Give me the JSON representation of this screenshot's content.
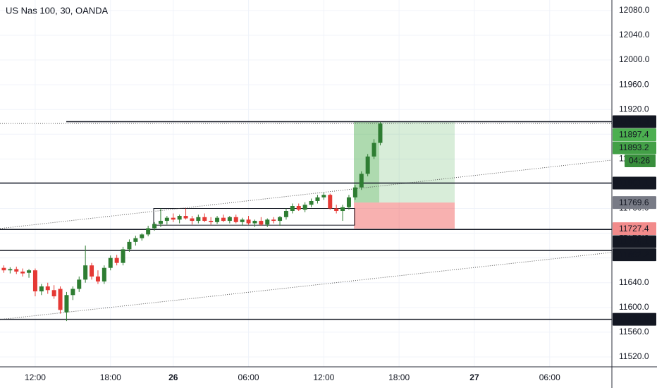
{
  "chart_data": {
    "type": "candlestick",
    "title": "US Nas 100, 30, OANDA",
    "categories": [
      null,
      null,
      null,
      null,
      null,
      "12:00",
      null,
      null,
      null,
      null,
      null,
      null,
      null,
      null,
      null,
      null,
      null,
      "18:00",
      null,
      null,
      null,
      null,
      null,
      null,
      null,
      null,
      null,
      "26",
      null,
      null,
      null,
      null,
      null,
      null,
      null,
      null,
      null,
      null,
      null,
      "06:00",
      null,
      null,
      null,
      null,
      null,
      null,
      null,
      null,
      null,
      null,
      null,
      "12:00",
      null,
      null,
      null,
      null,
      null,
      null,
      null,
      null,
      null,
      null,
      null,
      "18:00",
      null,
      null,
      null,
      null,
      null,
      null,
      null,
      null,
      null,
      null,
      null,
      "27",
      null,
      null,
      null,
      null,
      null,
      null,
      null,
      null,
      null,
      null,
      null,
      "06:00",
      null,
      null,
      null,
      null,
      null,
      null,
      null,
      null,
      null
    ],
    "open": [
      11664,
      11660,
      11662,
      11658,
      11656,
      11660,
      11626,
      11634,
      11628,
      11630,
      11592,
      11620,
      11630,
      11645,
      11668,
      11650,
      11642,
      11664,
      11680,
      11672,
      11694,
      11706,
      11712,
      11718,
      11728,
      11735,
      11740,
      11745,
      11742,
      11748,
      11744,
      11740,
      11746,
      11740,
      11738,
      11745,
      11740,
      11746,
      11738,
      11742,
      11736,
      11740,
      11734,
      11742,
      11740,
      11746,
      11756,
      11764,
      11758,
      11766,
      11772,
      11778,
      11782,
      11760,
      11756,
      11762,
      11778,
      11794,
      11816,
      11844,
      11866,
      null,
      null,
      null,
      null,
      null,
      null,
      null,
      null,
      null,
      null,
      null,
      null,
      null,
      null,
      null,
      null,
      null,
      null,
      null,
      null,
      null,
      null,
      null,
      null,
      null,
      null,
      null,
      null,
      null,
      null,
      null,
      null,
      null,
      null,
      null,
      null
    ],
    "high": [
      11668,
      11665,
      11666,
      11663,
      11662,
      11663,
      11638,
      11640,
      11636,
      11634,
      11625,
      11634,
      11650,
      11700,
      11672,
      11660,
      11668,
      11684,
      11685,
      11698,
      11710,
      11716,
      11720,
      11732,
      11738,
      11760,
      11748,
      11752,
      11750,
      11760,
      11748,
      11750,
      11752,
      11746,
      11748,
      11750,
      11748,
      11750,
      11745,
      11748,
      11742,
      11746,
      11744,
      11746,
      11748,
      11760,
      11768,
      11768,
      11770,
      11776,
      11782,
      11786,
      11784,
      11766,
      11766,
      11782,
      11798,
      11820,
      11848,
      11872,
      11900,
      null,
      null,
      null,
      null,
      null,
      null,
      null,
      null,
      null,
      null,
      null,
      null,
      null,
      null,
      null,
      null,
      null,
      null,
      null,
      null,
      null,
      null,
      null,
      null,
      null,
      null,
      null,
      null,
      null,
      null,
      null,
      null,
      null,
      null,
      null,
      null
    ],
    "low": [
      11656,
      11655,
      11654,
      11650,
      11648,
      11618,
      11620,
      11622,
      11614,
      11590,
      11578,
      11612,
      11625,
      11640,
      11645,
      11638,
      11638,
      11660,
      11668,
      11668,
      11690,
      11700,
      11708,
      11715,
      11724,
      11730,
      11734,
      11738,
      11736,
      11742,
      11734,
      11736,
      11738,
      11734,
      11735,
      11738,
      11736,
      11736,
      11732,
      11734,
      11730,
      11732,
      11730,
      11736,
      11732,
      11742,
      11752,
      11756,
      11754,
      11762,
      11768,
      11774,
      11758,
      11752,
      11740,
      11758,
      11774,
      11790,
      11812,
      11840,
      11862,
      null,
      null,
      null,
      null,
      null,
      null,
      null,
      null,
      null,
      null,
      null,
      null,
      null,
      null,
      null,
      null,
      null,
      null,
      null,
      null,
      null,
      null,
      null,
      null,
      null,
      null,
      null,
      null,
      null,
      null,
      null,
      null,
      null,
      null,
      null,
      null
    ],
    "close": [
      11660,
      11662,
      11658,
      11655,
      11660,
      11626,
      11634,
      11628,
      11618,
      11596,
      11620,
      11630,
      11645,
      11668,
      11650,
      11642,
      11664,
      11680,
      11672,
      11694,
      11706,
      11712,
      11718,
      11728,
      11735,
      11740,
      11745,
      11742,
      11748,
      11744,
      11740,
      11746,
      11740,
      11738,
      11745,
      11740,
      11746,
      11738,
      11742,
      11736,
      11740,
      11734,
      11742,
      11740,
      11746,
      11756,
      11764,
      11758,
      11766,
      11772,
      11778,
      11782,
      11760,
      11756,
      11762,
      11778,
      11794,
      11816,
      11844,
      11866,
      11897.4,
      null,
      null,
      null,
      null,
      null,
      null,
      null,
      null,
      null,
      null,
      null,
      null,
      null,
      null,
      null,
      null,
      null,
      null,
      null,
      null,
      null,
      null,
      null,
      null,
      null,
      null,
      null,
      null,
      null,
      null,
      null,
      null,
      null,
      null,
      null,
      null
    ],
    "up_color": "#2e7d32",
    "down_color": "#e53935",
    "ylim": [
      11504,
      12097
    ],
    "yticks": [
      {
        "value": 11520,
        "label": "11520.0"
      },
      {
        "value": 11560,
        "label": "11560.0"
      },
      {
        "value": 11600,
        "label": "11600.0"
      },
      {
        "value": 11640,
        "label": "11640.0"
      },
      {
        "value": 11680,
        "label": "11680.0"
      },
      {
        "value": 11720,
        "label": "11720.0"
      },
      {
        "value": 11760,
        "label": "11760.0"
      },
      {
        "value": 11800,
        "label": "11800.0"
      },
      {
        "value": 11840,
        "label": "11840.0"
      },
      {
        "value": 11880,
        "label": "11880.0"
      },
      {
        "value": 11920,
        "label": "11920.0"
      },
      {
        "value": 11960,
        "label": "11960.0"
      },
      {
        "value": 12000,
        "label": "12000.0"
      },
      {
        "value": 12040,
        "label": "12040.0"
      },
      {
        "value": 12080,
        "label": "12080.0"
      }
    ],
    "grid": true,
    "levels": [
      11900.3,
      11801.1,
      11726.1,
      11692.2,
      11580.9
    ],
    "second_price": 11893.2,
    "countdown": "04:26",
    "position": {
      "target": 11900.3,
      "entry": 11769.6,
      "stop": 11727.4
    },
    "range_box": {
      "top": 11760,
      "bottom": 11733
    },
    "trendlines": [
      {
        "start": 11727.6,
        "end": 11838.2
      },
      {
        "start": 11580.5,
        "end": 11689
      }
    ]
  }
}
